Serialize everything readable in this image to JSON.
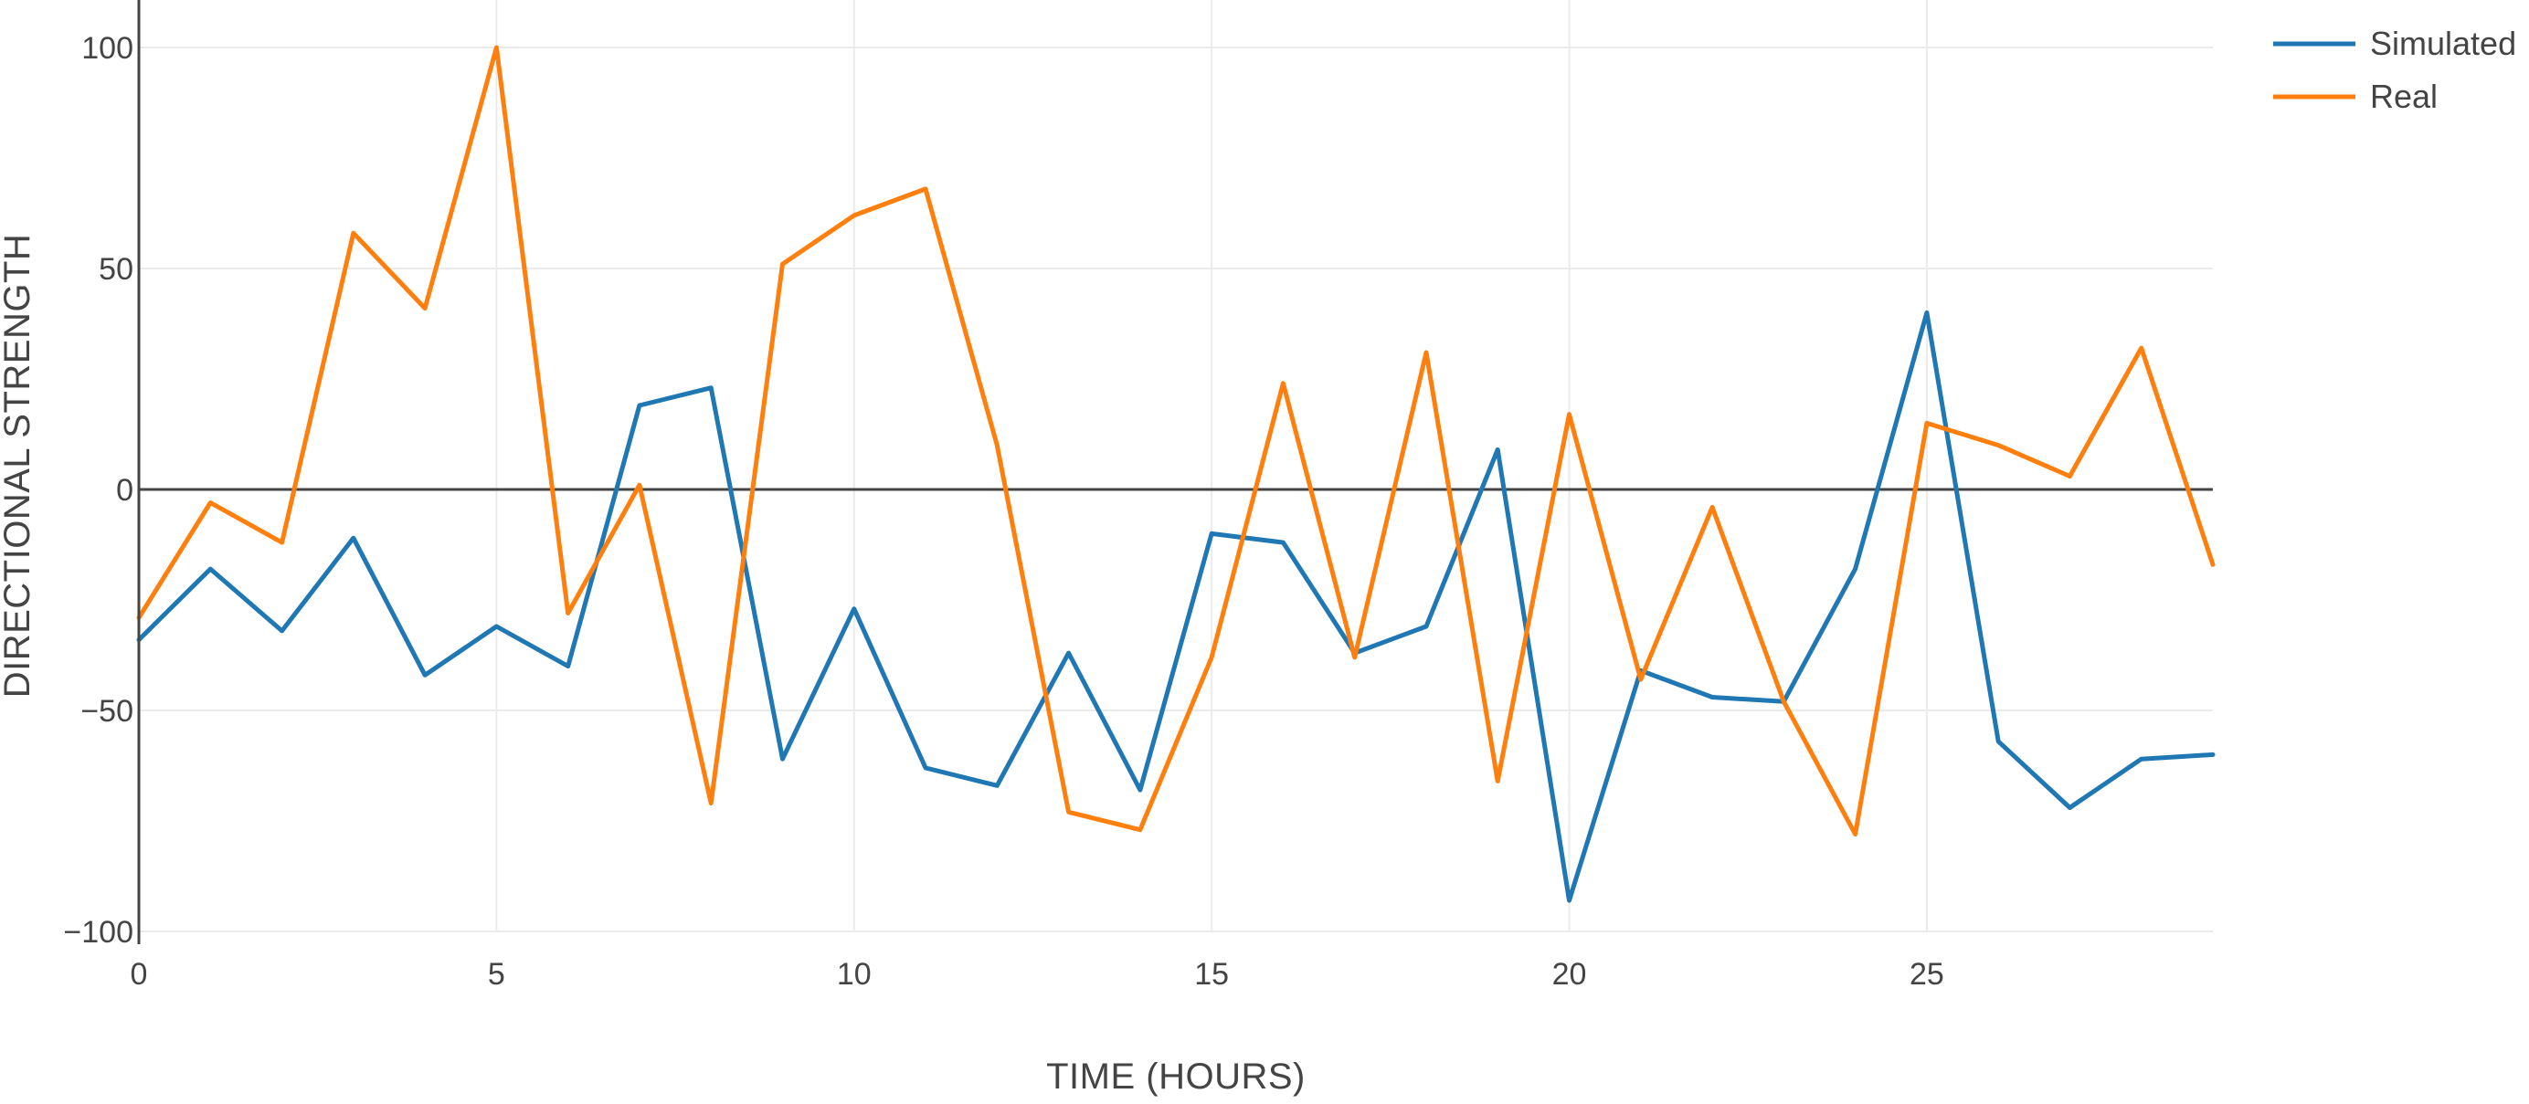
{
  "chart_data": {
    "type": "line",
    "title": "",
    "xlabel": "TIME (HOURS)",
    "ylabel": "DIRECTIONAL STRENGTH",
    "xlim": [
      0,
      29
    ],
    "ylim": [
      -100,
      105
    ],
    "x_ticks": [
      0,
      5,
      10,
      15,
      20,
      25
    ],
    "y_ticks": [
      -100,
      -50,
      0,
      50,
      100
    ],
    "y_tick_labels": [
      "−100",
      "−50",
      "0",
      "50",
      "100"
    ],
    "grid": true,
    "zero_line": true,
    "legend_position": "top-right",
    "x": [
      0,
      1,
      2,
      3,
      4,
      5,
      6,
      7,
      8,
      9,
      10,
      11,
      12,
      13,
      14,
      15,
      16,
      17,
      18,
      19,
      20,
      21,
      22,
      23,
      24,
      25,
      26,
      27,
      28,
      29
    ],
    "series": [
      {
        "name": "Simulated",
        "color": "#1f77b4",
        "values": [
          -34,
          -18,
          -32,
          -11,
          -42,
          -31,
          -40,
          19,
          23,
          -61,
          -27,
          -63,
          -67,
          -37,
          -68,
          -10,
          -12,
          -37,
          -31,
          9,
          -93,
          -41,
          -47,
          -48,
          -18,
          40,
          -57,
          -72,
          -61,
          -60
        ]
      },
      {
        "name": "Real",
        "color": "#ff7f0e",
        "values": [
          -29,
          -3,
          -12,
          58,
          41,
          100,
          -28,
          1,
          -71,
          51,
          62,
          68,
          10,
          -73,
          -77,
          -38,
          24,
          -38,
          31,
          -66,
          17,
          -43,
          -4,
          -48,
          -78,
          15,
          10,
          3,
          32,
          -17
        ]
      }
    ]
  }
}
